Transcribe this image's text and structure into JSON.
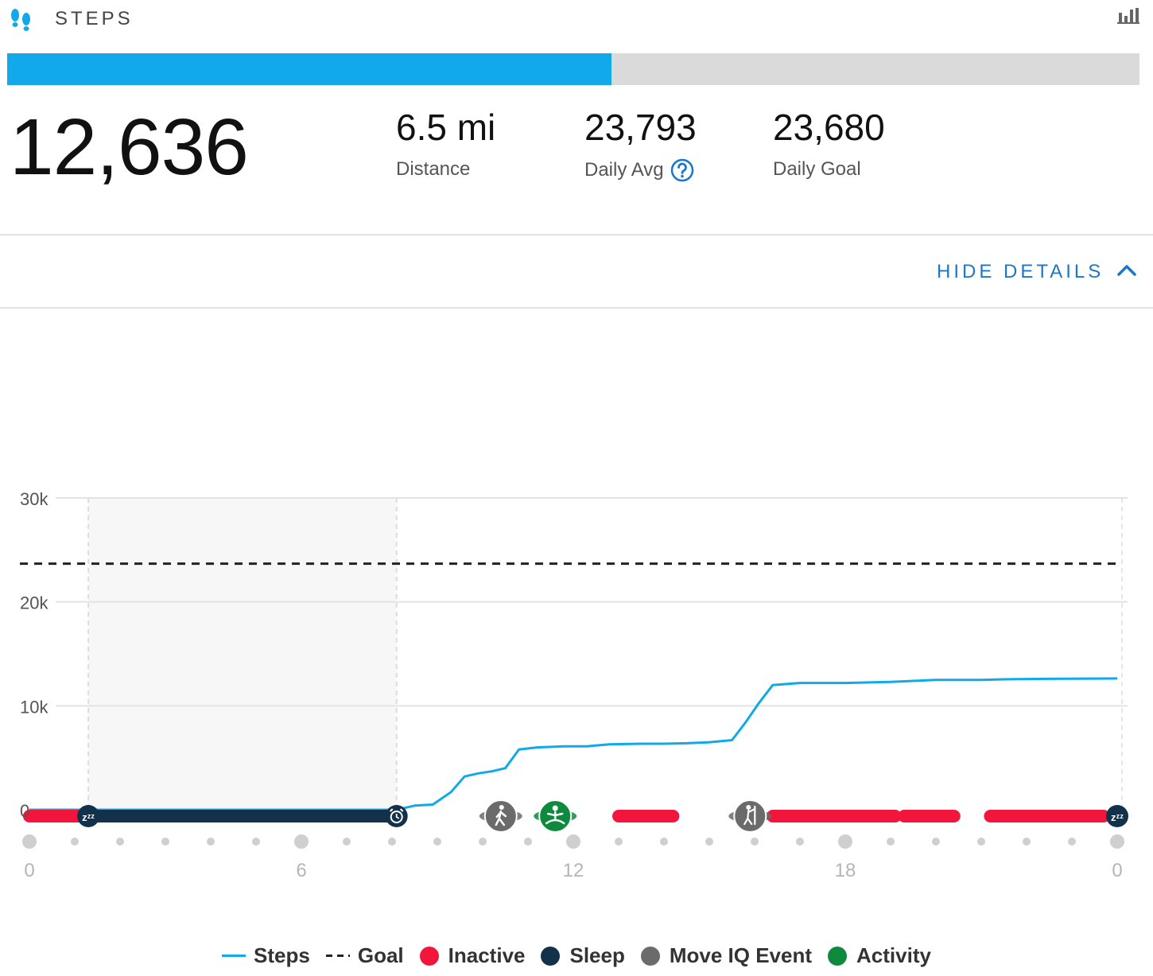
{
  "header": {
    "title": "STEPS",
    "icons": {
      "app": "footsteps-icon",
      "reports": "bar-chart-icon"
    }
  },
  "progress": {
    "fraction": 0.534,
    "color": "#11a9ea",
    "track_color": "#dadada"
  },
  "summary": {
    "steps": "12,636",
    "distance": {
      "value": "6.5 mi",
      "label": "Distance"
    },
    "daily_avg": {
      "value": "23,793",
      "label": "Daily Avg"
    },
    "daily_goal": {
      "value": "23,680",
      "label": "Daily Goal"
    }
  },
  "details_toggle": {
    "label": "HIDE DETAILS"
  },
  "chart_data": {
    "type": "line",
    "x_ticks": [
      "0",
      "6",
      "12",
      "18",
      "0"
    ],
    "y_ticks": [
      "0",
      "10k",
      "20k",
      "30k"
    ],
    "xlim": [
      0,
      24
    ],
    "ylim": [
      0,
      30000
    ],
    "grid": true,
    "legend_position": "bottom",
    "sleep_window": [
      1.3,
      8.1
    ],
    "series": [
      {
        "name": "Steps",
        "color": "#11a9ea",
        "x": [
          0,
          1.3,
          8.1,
          8.5,
          8.9,
          9.3,
          9.6,
          9.9,
          10.2,
          10.5,
          10.8,
          11.2,
          11.8,
          12.3,
          12.8,
          13.5,
          14.0,
          14.5,
          15.0,
          15.5,
          15.8,
          16.1,
          16.4,
          17.0,
          18.0,
          19.0,
          20.0,
          21.0,
          21.5,
          22.5,
          24.0
        ],
        "y": [
          0,
          0,
          0,
          400,
          500,
          1700,
          3200,
          3500,
          3700,
          4000,
          5800,
          6000,
          6100,
          6100,
          6300,
          6350,
          6350,
          6400,
          6500,
          6700,
          8400,
          10300,
          12000,
          12200,
          12200,
          12300,
          12500,
          12500,
          12550,
          12600,
          12636
        ]
      },
      {
        "name": "Goal",
        "color": "#222222",
        "y": 23680
      }
    ],
    "sleep_segments": [
      [
        1.3,
        8.1
      ]
    ],
    "inactive_segments": [
      [
        0.0,
        1.2
      ],
      [
        13.0,
        14.2
      ],
      [
        16.4,
        19.1
      ],
      [
        19.3,
        20.4
      ],
      [
        21.2,
        23.7
      ]
    ],
    "events": [
      {
        "name": "Move IQ Event",
        "icon": "walking-icon",
        "x": 10.4
      },
      {
        "name": "Activity",
        "icon": "yoga-icon",
        "x": 11.6
      },
      {
        "name": "Move IQ Event",
        "icon": "elliptical-icon",
        "x": 15.9
      }
    ],
    "sleep_markers": [
      {
        "icon": "sleep-zzz-icon",
        "x": 1.3
      },
      {
        "icon": "alarm-clock-icon",
        "x": 8.1
      },
      {
        "icon": "sleep-zzz-icon",
        "x": 24.0
      }
    ],
    "colors": {
      "steps": "#11a9ea",
      "goal": "#222222",
      "inactive": "#f2163c",
      "sleep": "#12314a",
      "move_iq": "#6b6b6b",
      "activity": "#0d8a3c"
    }
  },
  "legend": [
    {
      "label": "Steps",
      "swatch": "line",
      "color": "#11a9ea"
    },
    {
      "label": "Goal",
      "swatch": "dash",
      "color": "#222222"
    },
    {
      "label": "Inactive",
      "swatch": "dot",
      "color": "#f2163c"
    },
    {
      "label": "Sleep",
      "swatch": "dot",
      "color": "#12314a"
    },
    {
      "label": "Move IQ Event",
      "swatch": "dot",
      "color": "#6b6b6b"
    },
    {
      "label": "Activity",
      "swatch": "dot",
      "color": "#0d8a3c"
    }
  ]
}
